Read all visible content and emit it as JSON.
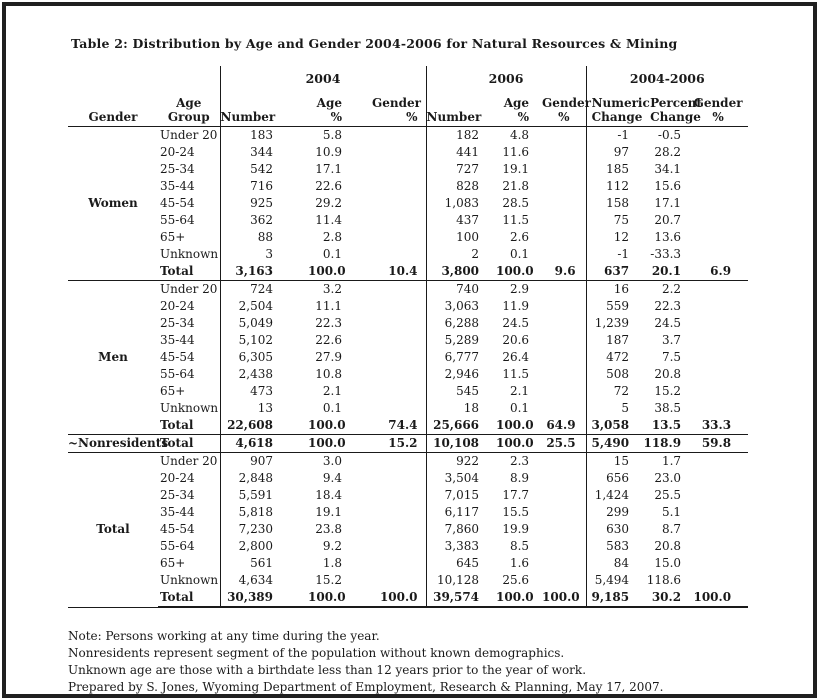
{
  "title": "Table 2: Distribution by Age and Gender 2004-2006 for Natural Resources & Mining",
  "table": {
    "group_headers": [
      "2004",
      "2006",
      "2004-2006"
    ],
    "col_headers": [
      "Gender",
      "Age\nGroup",
      "Number",
      "Age %",
      "Gender %",
      "Number",
      "Age %",
      "Gender\n%",
      "Numeric\nChange",
      "Percent\nChange",
      "Gender\n%"
    ],
    "total_label": "Total",
    "sections": [
      {
        "gender": "Women",
        "rows": [
          {
            "age": "Under 20",
            "vals": [
              "183",
              "5.8",
              "",
              "182",
              "4.8",
              "",
              "-1",
              "-0.5",
              ""
            ]
          },
          {
            "age": "20-24",
            "vals": [
              "344",
              "10.9",
              "",
              "441",
              "11.6",
              "",
              "97",
              "28.2",
              ""
            ]
          },
          {
            "age": "25-34",
            "vals": [
              "542",
              "17.1",
              "",
              "727",
              "19.1",
              "",
              "185",
              "34.1",
              ""
            ]
          },
          {
            "age": "35-44",
            "vals": [
              "716",
              "22.6",
              "",
              "828",
              "21.8",
              "",
              "112",
              "15.6",
              ""
            ]
          },
          {
            "age": "45-54",
            "vals": [
              "925",
              "29.2",
              "",
              "1,083",
              "28.5",
              "",
              "158",
              "17.1",
              ""
            ]
          },
          {
            "age": "55-64",
            "vals": [
              "362",
              "11.4",
              "",
              "437",
              "11.5",
              "",
              "75",
              "20.7",
              ""
            ]
          },
          {
            "age": "65+",
            "vals": [
              "88",
              "2.8",
              "",
              "100",
              "2.6",
              "",
              "12",
              "13.6",
              ""
            ]
          },
          {
            "age": "Unknown",
            "vals": [
              "3",
              "0.1",
              "",
              "2",
              "0.1",
              "",
              "-1",
              "-33.3",
              ""
            ]
          },
          {
            "age": "Total",
            "vals": [
              "3,163",
              "100.0",
              "10.4",
              "3,800",
              "100.0",
              "9.6",
              "637",
              "20.1",
              "6.9"
            ]
          }
        ]
      },
      {
        "gender": "Men",
        "rows": [
          {
            "age": "Under 20",
            "vals": [
              "724",
              "3.2",
              "",
              "740",
              "2.9",
              "",
              "16",
              "2.2",
              ""
            ]
          },
          {
            "age": "20-24",
            "vals": [
              "2,504",
              "11.1",
              "",
              "3,063",
              "11.9",
              "",
              "559",
              "22.3",
              ""
            ]
          },
          {
            "age": "25-34",
            "vals": [
              "5,049",
              "22.3",
              "",
              "6,288",
              "24.5",
              "",
              "1,239",
              "24.5",
              ""
            ]
          },
          {
            "age": "35-44",
            "vals": [
              "5,102",
              "22.6",
              "",
              "5,289",
              "20.6",
              "",
              "187",
              "3.7",
              ""
            ]
          },
          {
            "age": "45-54",
            "vals": [
              "6,305",
              "27.9",
              "",
              "6,777",
              "26.4",
              "",
              "472",
              "7.5",
              ""
            ]
          },
          {
            "age": "55-64",
            "vals": [
              "2,438",
              "10.8",
              "",
              "2,946",
              "11.5",
              "",
              "508",
              "20.8",
              ""
            ]
          },
          {
            "age": "65+",
            "vals": [
              "473",
              "2.1",
              "",
              "545",
              "2.1",
              "",
              "72",
              "15.2",
              ""
            ]
          },
          {
            "age": "Unknown",
            "vals": [
              "13",
              "0.1",
              "",
              "18",
              "0.1",
              "",
              "5",
              "38.5",
              ""
            ]
          },
          {
            "age": "Total",
            "vals": [
              "22,608",
              "100.0",
              "74.4",
              "25,666",
              "100.0",
              "64.9",
              "3,058",
              "13.5",
              "33.3"
            ]
          }
        ]
      },
      {
        "gender": "~Nonresidents",
        "rows": [
          {
            "age": "Total",
            "vals": [
              "4,618",
              "100.0",
              "15.2",
              "10,108",
              "100.0",
              "25.5",
              "5,490",
              "118.9",
              "59.8"
            ]
          }
        ]
      },
      {
        "gender": "Total",
        "rows": [
          {
            "age": "Under 20",
            "vals": [
              "907",
              "3.0",
              "",
              "922",
              "2.3",
              "",
              "15",
              "1.7",
              ""
            ]
          },
          {
            "age": "20-24",
            "vals": [
              "2,848",
              "9.4",
              "",
              "3,504",
              "8.9",
              "",
              "656",
              "23.0",
              ""
            ]
          },
          {
            "age": "25-34",
            "vals": [
              "5,591",
              "18.4",
              "",
              "7,015",
              "17.7",
              "",
              "1,424",
              "25.5",
              ""
            ]
          },
          {
            "age": "35-44",
            "vals": [
              "5,818",
              "19.1",
              "",
              "6,117",
              "15.5",
              "",
              "299",
              "5.1",
              ""
            ]
          },
          {
            "age": "45-54",
            "vals": [
              "7,230",
              "23.8",
              "",
              "7,860",
              "19.9",
              "",
              "630",
              "8.7",
              ""
            ]
          },
          {
            "age": "55-64",
            "vals": [
              "2,800",
              "9.2",
              "",
              "3,383",
              "8.5",
              "",
              "583",
              "20.8",
              ""
            ]
          },
          {
            "age": "65+",
            "vals": [
              "561",
              "1.8",
              "",
              "645",
              "1.6",
              "",
              "84",
              "15.0",
              ""
            ]
          },
          {
            "age": "Unknown",
            "vals": [
              "4,634",
              "15.2",
              "",
              "10,128",
              "25.6",
              "",
              "5,494",
              "118.6",
              ""
            ]
          },
          {
            "age": "Total",
            "vals": [
              "30,389",
              "100.0",
              "100.0",
              "39,574",
              "100.0",
              "100.0",
              "9,185",
              "30.2",
              "100.0"
            ]
          }
        ]
      }
    ]
  },
  "notes": [
    "Note: Persons working at any time during the year.",
    "Nonresidents represent segment of the population without known demographics.",
    "Unknown age are those with a birthdate less than 12 years prior to the year of work.",
    "Prepared by S. Jones, Wyoming Department of Employment, Research & Planning, May 17, 2007."
  ]
}
